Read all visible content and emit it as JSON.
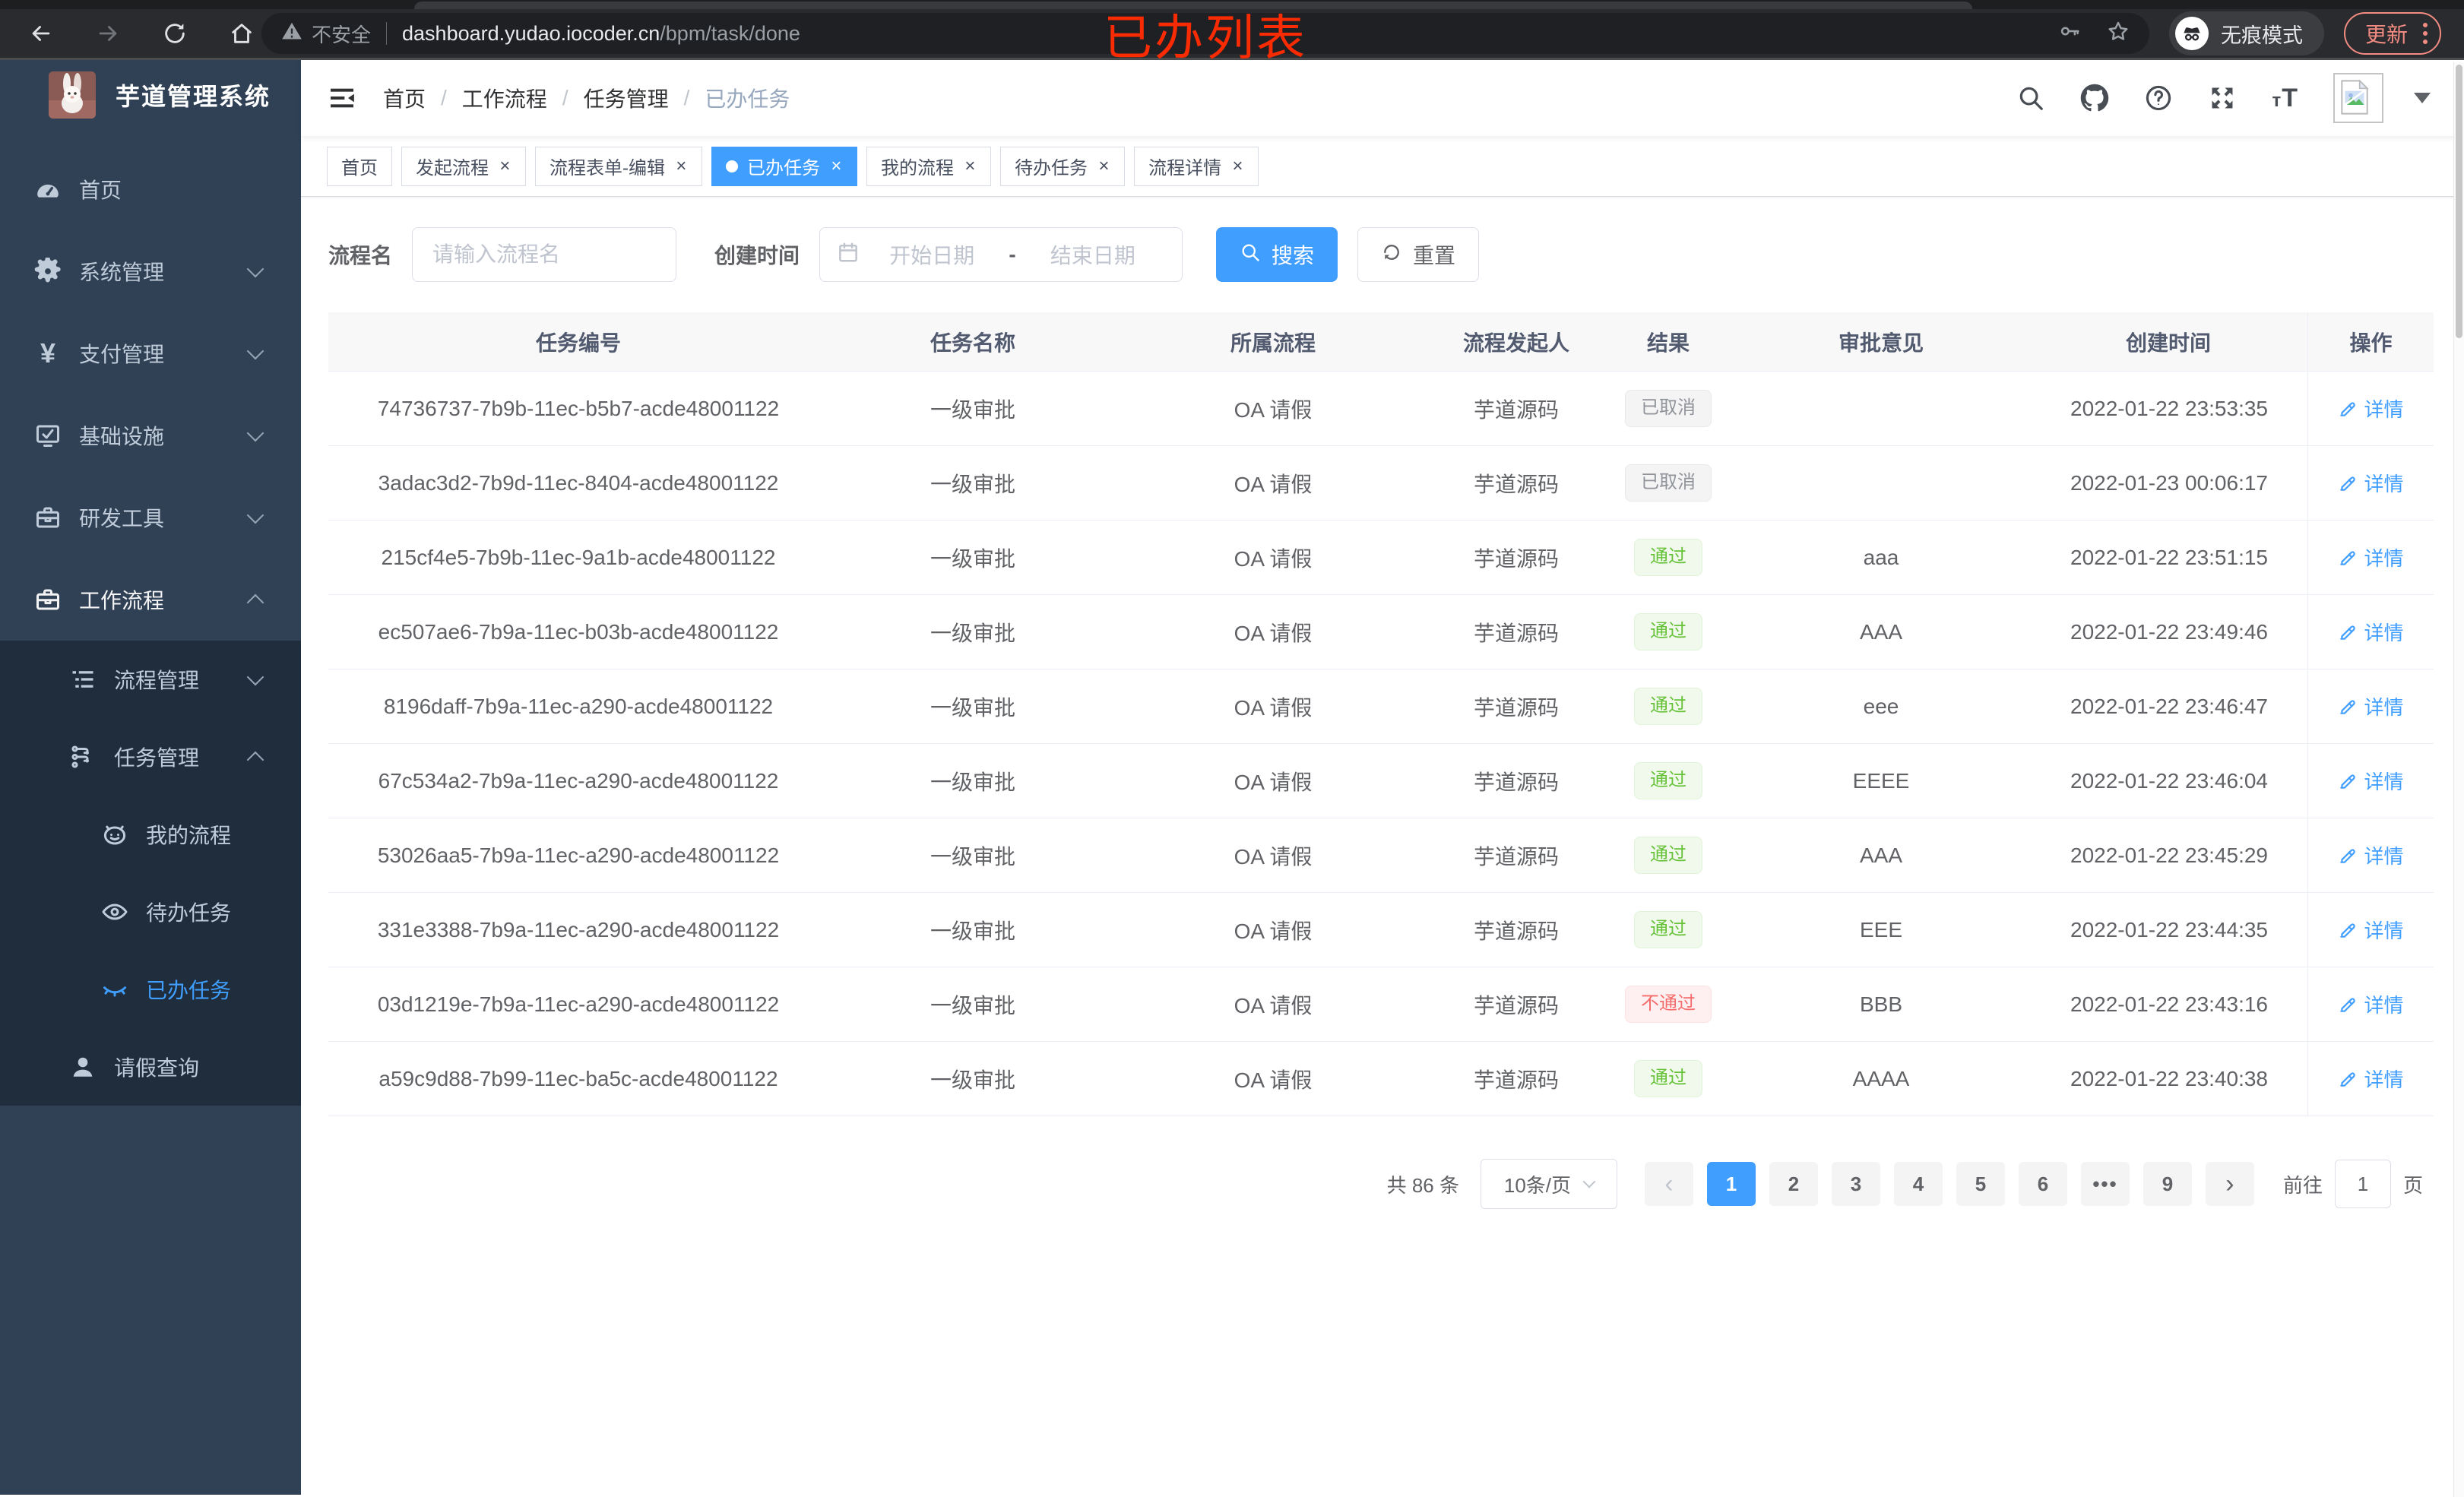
{
  "browser": {
    "security_label": "不安全",
    "url_host": "dashboard.yudao.iocoder.cn",
    "url_path": "/bpm/task/done",
    "incognito_label": "无痕模式",
    "update_label": "更新",
    "overlay_title": "已办列表"
  },
  "sidebar": {
    "app_title": "芋道管理系统",
    "items": [
      {
        "key": "home",
        "icon": "dashboard-icon",
        "label": "首页",
        "level": 1
      },
      {
        "key": "system",
        "icon": "gear-icon",
        "label": "系统管理",
        "level": 1,
        "arrow": "down"
      },
      {
        "key": "payment",
        "icon": "yen-icon",
        "label": "支付管理",
        "level": 1,
        "arrow": "down"
      },
      {
        "key": "infrastructure",
        "icon": "monitor-icon",
        "label": "基础设施",
        "level": 1,
        "arrow": "down"
      },
      {
        "key": "devtools",
        "icon": "toolbox-icon",
        "label": "研发工具",
        "level": 1,
        "arrow": "down"
      },
      {
        "key": "workflow",
        "icon": "toolbox-icon",
        "label": "工作流程",
        "level": 1,
        "arrow": "up",
        "opened": true
      },
      {
        "key": "process-mgmt",
        "icon": "list-icon",
        "label": "流程管理",
        "level": 2,
        "arrow": "down",
        "sub": true
      },
      {
        "key": "task-mgmt",
        "icon": "tree-icon",
        "label": "任务管理",
        "level": 2,
        "arrow": "up",
        "sub": true
      },
      {
        "key": "my-process",
        "icon": "robot-icon",
        "label": "我的流程",
        "level": 3,
        "sub": true
      },
      {
        "key": "todo-task",
        "icon": "eye-icon",
        "label": "待办任务",
        "level": 3,
        "sub": true
      },
      {
        "key": "done-task",
        "icon": "eye-closed-icon",
        "label": "已办任务",
        "level": 3,
        "sub": true,
        "active": true
      },
      {
        "key": "leave-query",
        "icon": "user-icon",
        "label": "请假查询",
        "level": 2,
        "sub": true
      }
    ]
  },
  "breadcrumb": {
    "items": [
      "首页",
      "工作流程",
      "任务管理",
      "已办任务"
    ]
  },
  "tabs": [
    {
      "label": "首页",
      "closable": false,
      "active": false
    },
    {
      "label": "发起流程",
      "closable": true,
      "active": false
    },
    {
      "label": "流程表单-编辑",
      "closable": true,
      "active": false
    },
    {
      "label": "已办任务",
      "closable": true,
      "active": true
    },
    {
      "label": "我的流程",
      "closable": true,
      "active": false
    },
    {
      "label": "待办任务",
      "closable": true,
      "active": false
    },
    {
      "label": "流程详情",
      "closable": true,
      "active": false
    }
  ],
  "filters": {
    "name_label": "流程名",
    "name_placeholder": "请输入流程名",
    "name_value": "",
    "date_label": "创建时间",
    "date_start_placeholder": "开始日期",
    "date_separator": "-",
    "date_end_placeholder": "结束日期",
    "search_label": "搜索",
    "reset_label": "重置"
  },
  "table": {
    "columns": [
      "任务编号",
      "任务名称",
      "所属流程",
      "流程发起人",
      "结果",
      "审批意见",
      "创建时间",
      "操作"
    ],
    "action_label": "详情",
    "rows": [
      {
        "id": "74736737-7b9b-11ec-b5b7-acde48001122",
        "name": "一级审批",
        "process": "OA 请假",
        "initiator": "芋道源码",
        "result": "已取消",
        "result_type": "info",
        "comment": "",
        "created": "2022-01-22 23:53:35"
      },
      {
        "id": "3adac3d2-7b9d-11ec-8404-acde48001122",
        "name": "一级审批",
        "process": "OA 请假",
        "initiator": "芋道源码",
        "result": "已取消",
        "result_type": "info",
        "comment": "",
        "created": "2022-01-23 00:06:17"
      },
      {
        "id": "215cf4e5-7b9b-11ec-9a1b-acde48001122",
        "name": "一级审批",
        "process": "OA 请假",
        "initiator": "芋道源码",
        "result": "通过",
        "result_type": "success",
        "comment": "aaa",
        "created": "2022-01-22 23:51:15"
      },
      {
        "id": "ec507ae6-7b9a-11ec-b03b-acde48001122",
        "name": "一级审批",
        "process": "OA 请假",
        "initiator": "芋道源码",
        "result": "通过",
        "result_type": "success",
        "comment": "AAA",
        "created": "2022-01-22 23:49:46"
      },
      {
        "id": "8196daff-7b9a-11ec-a290-acde48001122",
        "name": "一级审批",
        "process": "OA 请假",
        "initiator": "芋道源码",
        "result": "通过",
        "result_type": "success",
        "comment": "eee",
        "created": "2022-01-22 23:46:47"
      },
      {
        "id": "67c534a2-7b9a-11ec-a290-acde48001122",
        "name": "一级审批",
        "process": "OA 请假",
        "initiator": "芋道源码",
        "result": "通过",
        "result_type": "success",
        "comment": "EEEE",
        "created": "2022-01-22 23:46:04"
      },
      {
        "id": "53026aa5-7b9a-11ec-a290-acde48001122",
        "name": "一级审批",
        "process": "OA 请假",
        "initiator": "芋道源码",
        "result": "通过",
        "result_type": "success",
        "comment": "AAA",
        "created": "2022-01-22 23:45:29"
      },
      {
        "id": "331e3388-7b9a-11ec-a290-acde48001122",
        "name": "一级审批",
        "process": "OA 请假",
        "initiator": "芋道源码",
        "result": "通过",
        "result_type": "success",
        "comment": "EEE",
        "created": "2022-01-22 23:44:35"
      },
      {
        "id": "03d1219e-7b9a-11ec-a290-acde48001122",
        "name": "一级审批",
        "process": "OA 请假",
        "initiator": "芋道源码",
        "result": "不通过",
        "result_type": "danger",
        "comment": "BBB",
        "created": "2022-01-22 23:43:16"
      },
      {
        "id": "a59c9d88-7b99-11ec-ba5c-acde48001122",
        "name": "一级审批",
        "process": "OA 请假",
        "initiator": "芋道源码",
        "result": "通过",
        "result_type": "success",
        "comment": "AAAA",
        "created": "2022-01-22 23:40:38"
      }
    ]
  },
  "pagination": {
    "total_text": "共 86 条",
    "page_size": "10条/页",
    "prev_label": "‹",
    "next_label": "›",
    "pages": [
      "1",
      "2",
      "3",
      "4",
      "5",
      "6",
      "•••",
      "9"
    ],
    "active_page": "1",
    "goto_label": "前往",
    "goto_value": "1",
    "goto_suffix": "页"
  },
  "colors": {
    "primary": "#409eff",
    "success": "#67c23a",
    "danger": "#f56c6c",
    "info": "#909399",
    "sidebar_bg": "#304156",
    "submenu_bg": "#1f2d3d",
    "overlay_red": "#f92b02",
    "update_accent": "#f28b82"
  }
}
